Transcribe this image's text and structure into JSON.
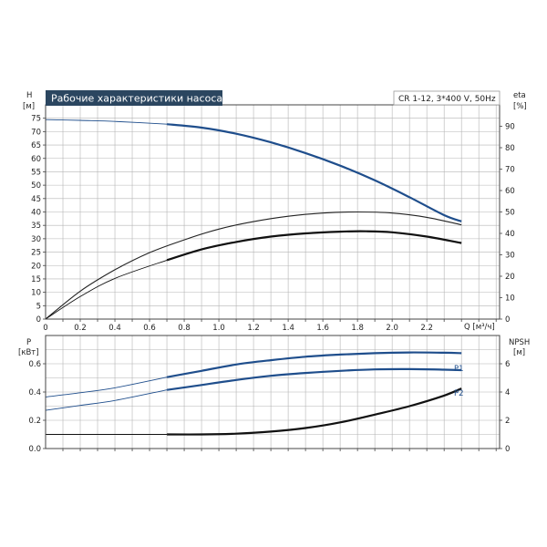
{
  "chart_data": [
    {
      "type": "line",
      "title": "Рабочие характеристики насоса",
      "subtitle": "CR 1-12, 3*400 V, 50Hz",
      "ylabel_left": [
        "H",
        "[м]"
      ],
      "ylabel_right": [
        "eta",
        "[%]"
      ],
      "xlabel": "Q [м³/ч]",
      "xlim": [
        0,
        2.62
      ],
      "ylim_left": [
        0,
        80
      ],
      "ylim_right": [
        0,
        100
      ],
      "xticks": [
        0,
        0.2,
        0.4,
        0.6,
        0.8,
        1.0,
        1.2,
        1.4,
        1.6,
        1.8,
        2.0,
        2.2
      ],
      "xtick_labels": [
        "0",
        "0.2",
        "0.4",
        "0.6",
        "0.8",
        "1.0",
        "1.2",
        "1.4",
        "1.6",
        "1.8",
        "2.0",
        "2.2"
      ],
      "yticks_left": [
        0,
        5,
        10,
        15,
        20,
        25,
        30,
        35,
        40,
        45,
        50,
        55,
        60,
        65,
        70,
        75
      ],
      "yticks_right": [
        0,
        10,
        20,
        30,
        40,
        50,
        60,
        70,
        80,
        90
      ],
      "grid": true,
      "series": [
        {
          "axis": "left",
          "color": "#1f4e8c",
          "x": [
            0,
            0.2,
            0.4,
            0.7,
            0.9,
            1.1,
            1.3,
            1.5,
            1.7,
            1.9,
            2.1,
            2.3,
            2.4
          ],
          "y": [
            74.5,
            74.2,
            73.8,
            72.8,
            71.5,
            69.2,
            66.0,
            62.0,
            57.3,
            51.8,
            45.5,
            38.8,
            36.5
          ],
          "dashed_until": 0.7
        },
        {
          "axis": "right",
          "color": "#222222",
          "x": [
            0,
            0.2,
            0.4,
            0.6,
            0.8,
            1.0,
            1.2,
            1.4,
            1.6,
            1.8,
            2.0,
            2.2,
            2.4
          ],
          "y": [
            0,
            13,
            23,
            31,
            37,
            42,
            45.5,
            48,
            49.5,
            50,
            49.5,
            47.5,
            44
          ],
          "dashed_until": 0
        },
        {
          "axis": "right",
          "color": "#111111",
          "x": [
            0,
            0.2,
            0.4,
            0.7,
            0.9,
            1.1,
            1.3,
            1.5,
            1.7,
            1.85,
            2.0,
            2.2,
            2.4
          ],
          "y": [
            0,
            10.5,
            19,
            27.5,
            32.5,
            36,
            38.5,
            40,
            40.8,
            41,
            40.5,
            38.5,
            35.5
          ],
          "dashed_until": 0.7
        }
      ]
    },
    {
      "type": "line",
      "ylabel_left": [
        "P",
        "[кВт]"
      ],
      "ylabel_right": [
        "NPSH",
        "[м]"
      ],
      "xlim": [
        0,
        2.62
      ],
      "ylim_left": [
        0,
        0.8
      ],
      "ylim_right": [
        0,
        8
      ],
      "yticks_left": [
        0.0,
        0.2,
        0.4,
        0.6
      ],
      "ytick_labels_left": [
        "0.0",
        "0.2",
        "0.4",
        "0.6"
      ],
      "yticks_right": [
        0,
        2,
        4,
        6
      ],
      "grid": true,
      "series": [
        {
          "name": "P1",
          "axis": "left",
          "color": "#1f4e8c",
          "x": [
            0,
            0.2,
            0.4,
            0.7,
            0.9,
            1.1,
            1.3,
            1.5,
            1.7,
            1.9,
            2.1,
            2.3,
            2.4
          ],
          "y": [
            0.365,
            0.395,
            0.43,
            0.505,
            0.55,
            0.595,
            0.625,
            0.65,
            0.665,
            0.675,
            0.68,
            0.678,
            0.675
          ],
          "dashed_until": 0.7
        },
        {
          "name": "P2",
          "axis": "left",
          "color": "#1f4e8c",
          "x": [
            0,
            0.2,
            0.4,
            0.7,
            0.9,
            1.1,
            1.3,
            1.5,
            1.7,
            1.9,
            2.1,
            2.3,
            2.4
          ],
          "y": [
            0.27,
            0.305,
            0.34,
            0.415,
            0.45,
            0.485,
            0.515,
            0.535,
            0.55,
            0.56,
            0.562,
            0.558,
            0.555
          ],
          "dashed_until": 0.7
        },
        {
          "axis": "right",
          "color": "#111111",
          "x": [
            0,
            0.2,
            0.4,
            0.7,
            0.9,
            1.1,
            1.3,
            1.5,
            1.7,
            1.9,
            2.1,
            2.3,
            2.4
          ],
          "y": [
            1.0,
            1.0,
            1.0,
            1.0,
            1.0,
            1.05,
            1.2,
            1.45,
            1.85,
            2.4,
            3.0,
            3.75,
            4.25
          ],
          "dashed_until": 0.7
        }
      ]
    }
  ]
}
